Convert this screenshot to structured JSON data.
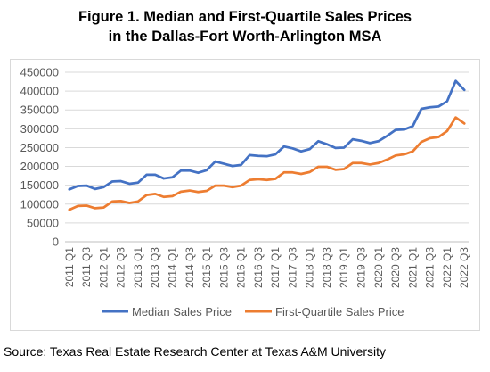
{
  "header": {
    "title_line1": "Figure 1. Median and First-Quartile Sales Prices",
    "title_line2": "in the Dallas-Fort Worth-Arlington MSA"
  },
  "footer": {
    "source": "Source: Texas Real Estate Research Center at Texas A&M University"
  },
  "chart_data": {
    "type": "line",
    "title": "Figure 1. Median and First-Quartile Sales Prices in the Dallas-Fort Worth-Arlington MSA",
    "xlabel": "",
    "ylabel": "",
    "ylim": [
      0,
      450000
    ],
    "yticks": [
      0,
      50000,
      100000,
      150000,
      200000,
      250000,
      300000,
      350000,
      400000,
      450000
    ],
    "grid": "horizontal",
    "legend_position": "bottom",
    "x": [
      "2011 Q1",
      "2011 Q2",
      "2011 Q3",
      "2011 Q4",
      "2012 Q1",
      "2012 Q2",
      "2012 Q3",
      "2012 Q4",
      "2013 Q1",
      "2013 Q2",
      "2013 Q3",
      "2013 Q4",
      "2014 Q1",
      "2014 Q2",
      "2014 Q3",
      "2014 Q4",
      "2015 Q1",
      "2015 Q2",
      "2015 Q3",
      "2015 Q4",
      "2016 Q1",
      "2016 Q2",
      "2016 Q3",
      "2016 Q4",
      "2017 Q1",
      "2017 Q2",
      "2017 Q3",
      "2017 Q4",
      "2018 Q1",
      "2018 Q2",
      "2018 Q3",
      "2018 Q4",
      "2019 Q1",
      "2019 Q2",
      "2019 Q3",
      "2019 Q4",
      "2020 Q1",
      "2020 Q2",
      "2020 Q3",
      "2020 Q4",
      "2021 Q1",
      "2021 Q2",
      "2021 Q3",
      "2021 Q4",
      "2022 Q1",
      "2022 Q2",
      "2022 Q3"
    ],
    "xtick_labels": [
      "2011 Q1",
      "2011 Q3",
      "2012 Q1",
      "2012 Q3",
      "2013 Q1",
      "2013 Q3",
      "2014 Q1",
      "2014 Q3",
      "2015 Q1",
      "2015 Q3",
      "2016 Q1",
      "2016 Q3",
      "2017 Q1",
      "2017 Q3",
      "2018 Q1",
      "2018 Q3",
      "2019 Q1",
      "2019 Q3",
      "2020 Q1",
      "2020 Q3",
      "2021 Q1",
      "2021 Q3",
      "2022 Q1",
      "2022 Q3"
    ],
    "series": [
      {
        "name": "Median Sales Price",
        "color": "#4472c4",
        "values": [
          139000,
          148000,
          149000,
          140000,
          145000,
          160000,
          161000,
          154000,
          157000,
          178000,
          178000,
          168000,
          171000,
          189000,
          189000,
          183000,
          190000,
          213000,
          207000,
          201000,
          204000,
          230000,
          228000,
          227000,
          232000,
          253000,
          248000,
          240000,
          246000,
          267000,
          259000,
          249000,
          250000,
          272000,
          268000,
          262000,
          267000,
          281000,
          297000,
          298000,
          307000,
          353000,
          357000,
          359000,
          373000,
          427000,
          403000
        ]
      },
      {
        "name": "First-Quartile Sales Price",
        "color": "#ed7d31",
        "values": [
          85000,
          95000,
          96000,
          89000,
          91000,
          107000,
          108000,
          103000,
          107000,
          124000,
          127000,
          119000,
          121000,
          133000,
          136000,
          132000,
          135000,
          149000,
          149000,
          145000,
          149000,
          164000,
          166000,
          164000,
          167000,
          184000,
          184000,
          180000,
          185000,
          199000,
          199000,
          191000,
          193000,
          209000,
          209000,
          205000,
          209000,
          218000,
          229000,
          232000,
          240000,
          265000,
          275000,
          278000,
          294000,
          330000,
          314000
        ]
      }
    ]
  }
}
